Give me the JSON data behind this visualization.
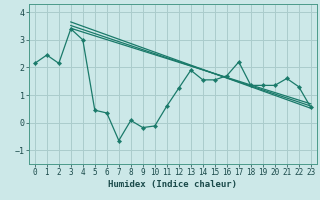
{
  "xlabel": "Humidex (Indice chaleur)",
  "bg_color": "#cce8e8",
  "grid_color": "#aacccc",
  "line_color": "#1a7a6a",
  "spine_color": "#4a9a8a",
  "xlim": [
    -0.5,
    23.5
  ],
  "ylim": [
    -1.5,
    4.3
  ],
  "yticks": [
    -1,
    0,
    1,
    2,
    3,
    4
  ],
  "xticks": [
    0,
    1,
    2,
    3,
    4,
    5,
    6,
    7,
    8,
    9,
    10,
    11,
    12,
    13,
    14,
    15,
    16,
    17,
    18,
    19,
    20,
    21,
    22,
    23
  ],
  "series1_x": [
    0,
    1,
    2,
    3,
    4,
    5,
    6,
    7,
    8,
    9,
    10,
    11,
    12,
    13,
    14,
    15,
    16,
    17,
    18,
    19,
    20,
    21,
    22,
    23
  ],
  "series1_y": [
    2.15,
    2.45,
    2.15,
    3.4,
    3.0,
    0.45,
    0.35,
    -0.65,
    0.08,
    -0.18,
    -0.12,
    0.6,
    1.25,
    1.9,
    1.55,
    1.55,
    1.7,
    2.2,
    1.35,
    1.35,
    1.35,
    1.6,
    1.3,
    0.55
  ],
  "trend_lines": [
    {
      "x": [
        3,
        23
      ],
      "y": [
        3.65,
        0.52
      ]
    },
    {
      "x": [
        3,
        23
      ],
      "y": [
        3.52,
        0.6
      ]
    },
    {
      "x": [
        3,
        23
      ],
      "y": [
        3.42,
        0.68
      ]
    }
  ],
  "xlabel_fontsize": 6.5,
  "tick_fontsize": 5.5
}
